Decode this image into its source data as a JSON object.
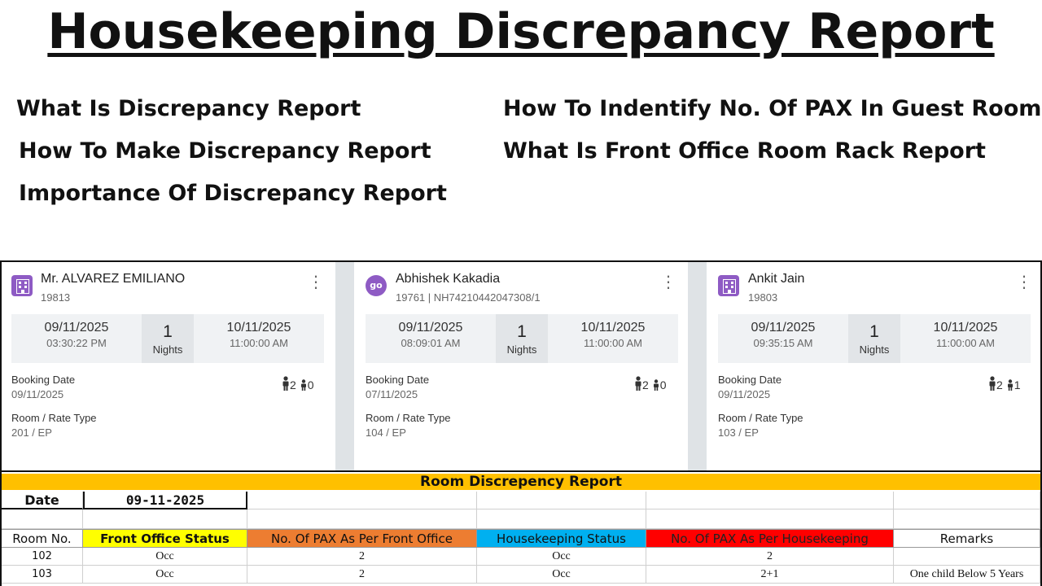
{
  "title": "Housekeeping Discrepancy Report",
  "topics": {
    "left": [
      "What Is Discrepancy Report",
      "How To Make Discrepancy Report",
      "Importance Of Discrepancy Report"
    ],
    "right": [
      "How To Indentify No. Of PAX In Guest Room",
      "What Is Front Office Room Rack Report"
    ]
  },
  "cards": [
    {
      "icon": "hotel-icon",
      "name": "Mr. ALVAREZ EMILIANO",
      "id": "19813",
      "checkin_date": "09/11/2025",
      "checkin_time": "03:30:22 PM",
      "nights": "1",
      "nights_label": "Nights",
      "checkout_date": "10/11/2025",
      "checkout_time": "11:00:00 AM",
      "booking_label": "Booking Date",
      "booking_date": "09/11/2025",
      "room_label": "Room / Rate Type",
      "room_value": "201 / EP",
      "adults": "2",
      "children": "0"
    },
    {
      "icon": "go-icon",
      "icon_text": "go",
      "name": "Abhishek Kakadia",
      "id": "19761 | NH74210442047308/1",
      "checkin_date": "09/11/2025",
      "checkin_time": "08:09:01 AM",
      "nights": "1",
      "nights_label": "Nights",
      "checkout_date": "10/11/2025",
      "checkout_time": "11:00:00 AM",
      "booking_label": "Booking Date",
      "booking_date": "07/11/2025",
      "room_label": "Room / Rate Type",
      "room_value": "104 / EP",
      "adults": "2",
      "children": "0"
    },
    {
      "icon": "hotel-icon",
      "name": "Ankit Jain",
      "id": "19803",
      "checkin_date": "09/11/2025",
      "checkin_time": "09:35:15 AM",
      "nights": "1",
      "nights_label": "Nights",
      "checkout_date": "10/11/2025",
      "checkout_time": "11:00:00 AM",
      "booking_label": "Booking Date",
      "booking_date": "09/11/2025",
      "room_label": "Room / Rate Type",
      "room_value": "103 / EP",
      "adults": "2",
      "children": "1"
    }
  ],
  "report": {
    "title": "Room Discrepency Report",
    "date_label": "Date",
    "date_value": "09-11-2025",
    "headers": [
      "Room No.",
      "Front Office Status",
      "No. Of PAX As Per Front Office",
      "Housekeeping Status",
      "No. Of PAX As Per Housekeeping",
      "Remarks"
    ],
    "rows": [
      [
        "102",
        "Occ",
        "2",
        "Occ",
        "2",
        ""
      ],
      [
        "103",
        "Occ",
        "2",
        "Occ",
        "2+1",
        "One child Below 5 Years"
      ]
    ],
    "colors": {
      "title_bg": "#ffc000",
      "front_office_bg": "#ffff00",
      "pax_front_office_bg": "#ed7d31",
      "housekeeping_bg": "#00b0f0",
      "pax_housekeeping_bg": "#ff0000"
    }
  },
  "colors": {
    "icon_purple": "#8e5bc4"
  }
}
